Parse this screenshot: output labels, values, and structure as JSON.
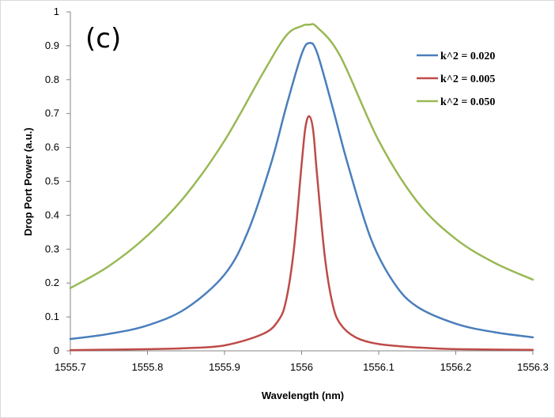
{
  "chart_data": {
    "type": "line",
    "title": "",
    "panel_label": "(c)",
    "xlabel": "Wavelength (nm)",
    "ylabel": "Drop Port Power (a.u.)",
    "xlim": [
      1555.7,
      1556.3
    ],
    "ylim": [
      0,
      1
    ],
    "x_ticks": [
      {
        "value": 1555.7,
        "label": "1555.7"
      },
      {
        "value": 1555.8,
        "label": "1555.8"
      },
      {
        "value": 1555.9,
        "label": "1555.9"
      },
      {
        "value": 1556.0,
        "label": "1556"
      },
      {
        "value": 1556.1,
        "label": "1556.1"
      },
      {
        "value": 1556.2,
        "label": "1556.2"
      },
      {
        "value": 1556.3,
        "label": "1556.3"
      }
    ],
    "y_ticks": [
      {
        "value": 0,
        "label": "0"
      },
      {
        "value": 0.1,
        "label": "0.1"
      },
      {
        "value": 0.2,
        "label": "0.2"
      },
      {
        "value": 0.3,
        "label": "0.3"
      },
      {
        "value": 0.4,
        "label": "0.4"
      },
      {
        "value": 0.5,
        "label": "0.5"
      },
      {
        "value": 0.6,
        "label": "0.6"
      },
      {
        "value": 0.7,
        "label": "0.7"
      },
      {
        "value": 0.8,
        "label": "0.8"
      },
      {
        "value": 0.9,
        "label": "0.9"
      },
      {
        "value": 1,
        "label": "1"
      }
    ],
    "grid": false,
    "legend_position": "top-right",
    "series": [
      {
        "name": "k^2 = 0.020",
        "color": "#4a7ebb",
        "x": [
          1555.7,
          1555.75,
          1555.8,
          1555.85,
          1555.9,
          1555.93,
          1555.96,
          1555.98,
          1556.0,
          1556.01,
          1556.02,
          1556.04,
          1556.06,
          1556.09,
          1556.12,
          1556.15,
          1556.2,
          1556.25,
          1556.3
        ],
        "y": [
          0.035,
          0.05,
          0.075,
          0.125,
          0.225,
          0.35,
          0.55,
          0.72,
          0.875,
          0.908,
          0.88,
          0.72,
          0.55,
          0.33,
          0.2,
          0.13,
          0.08,
          0.055,
          0.04
        ]
      },
      {
        "name": "k^2 = 0.005",
        "color": "#be4b48",
        "x": [
          1555.7,
          1555.8,
          1555.85,
          1555.9,
          1555.95,
          1555.97,
          1555.98,
          1555.99,
          1556.0,
          1556.005,
          1556.01,
          1556.015,
          1556.02,
          1556.03,
          1556.04,
          1556.05,
          1556.07,
          1556.1,
          1556.15,
          1556.2,
          1556.3
        ],
        "y": [
          0.002,
          0.005,
          0.008,
          0.016,
          0.05,
          0.09,
          0.15,
          0.3,
          0.55,
          0.66,
          0.692,
          0.65,
          0.52,
          0.28,
          0.14,
          0.08,
          0.04,
          0.02,
          0.01,
          0.005,
          0.003
        ]
      },
      {
        "name": "k^2 = 0.050",
        "color": "#98b954",
        "x": [
          1555.7,
          1555.75,
          1555.8,
          1555.85,
          1555.9,
          1555.95,
          1555.98,
          1556.0,
          1556.01,
          1556.02,
          1556.05,
          1556.1,
          1556.15,
          1556.2,
          1556.25,
          1556.3
        ],
        "y": [
          0.185,
          0.25,
          0.34,
          0.46,
          0.62,
          0.82,
          0.93,
          0.958,
          0.962,
          0.955,
          0.87,
          0.62,
          0.44,
          0.33,
          0.26,
          0.21
        ]
      }
    ]
  }
}
